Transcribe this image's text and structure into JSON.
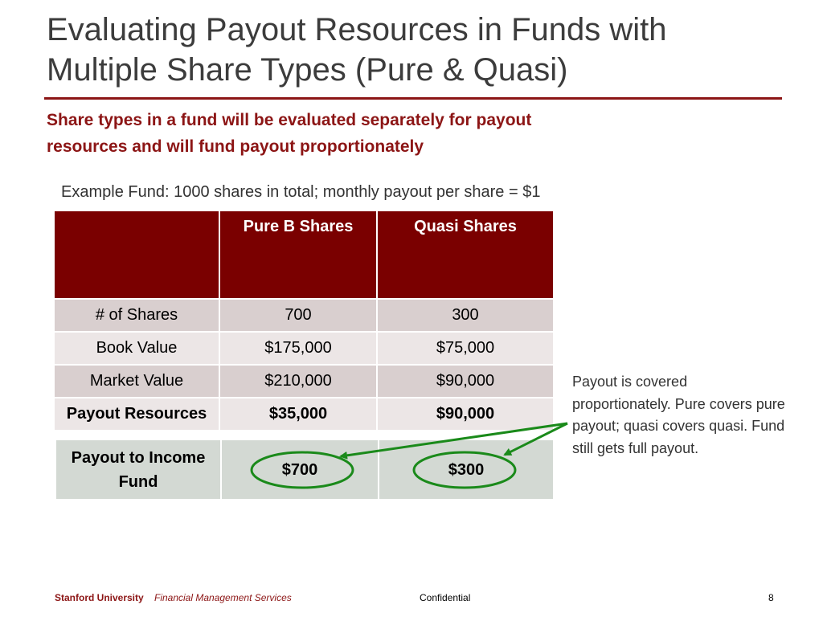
{
  "title": "Evaluating Payout Resources in Funds with Multiple Share Types (Pure & Quasi)",
  "subtitle": "Share types in a fund will be evaluated  separately for payout resources and will fund payout proportionately",
  "example": "Example Fund: 1000 shares in total; monthly payout per share = $1",
  "table": {
    "headers": [
      "",
      "Pure B  Shares",
      "Quasi Shares"
    ],
    "rows": [
      {
        "label": "# of Shares",
        "pure": "700",
        "quasi": "300"
      },
      {
        "label": "Book Value",
        "pure": "$175,000",
        "quasi": "$75,000"
      },
      {
        "label": "Market Value",
        "pure": "$210,000",
        "quasi": "$90,000"
      },
      {
        "label": "Payout Resources",
        "pure": "$35,000",
        "quasi": "$90,000"
      }
    ]
  },
  "payout_table": {
    "label": "Payout to Income Fund",
    "pure": "$700",
    "quasi": "$300"
  },
  "callout": "Payout is covered proportionately. Pure covers pure payout; quasi covers quasi. Fund still gets full payout.",
  "footer": {
    "org": "Stanford University",
    "dept": "Financial Management Services",
    "confidential": "Confidential",
    "page": "8"
  },
  "colors": {
    "accent": "#8c1515",
    "header_fill": "#7a0000",
    "arrow": "#1a8a1a"
  }
}
